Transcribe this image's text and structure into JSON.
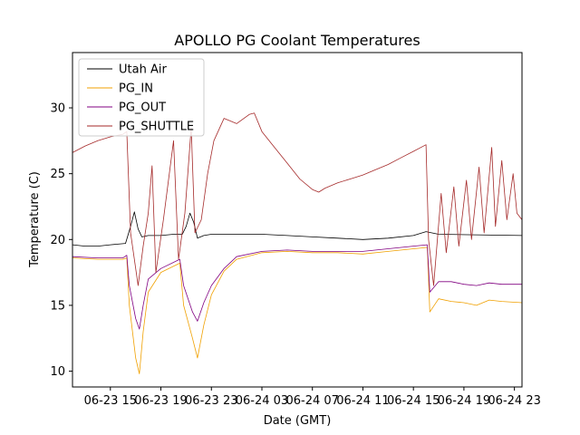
{
  "chart_data": {
    "type": "line",
    "title": "APOLLO PG Coolant Temperatures",
    "xlabel": "Date (GMT)",
    "ylabel": "Temperature (C)",
    "x_unit": "hours since 06-23 12:00 GMT",
    "xlim": [
      0,
      35.6
    ],
    "ylim": [
      8.8,
      34.2
    ],
    "yticks": [
      10,
      15,
      20,
      25,
      30
    ],
    "xticks": [
      {
        "value": 3,
        "label": "06-23 15"
      },
      {
        "value": 7,
        "label": "06-23 19"
      },
      {
        "value": 11,
        "label": "06-23 23"
      },
      {
        "value": 15,
        "label": "06-24 03"
      },
      {
        "value": 19,
        "label": "06-24 07"
      },
      {
        "value": 23,
        "label": "06-24 11"
      },
      {
        "value": 27,
        "label": "06-24 15"
      },
      {
        "value": 31,
        "label": "06-24 19"
      },
      {
        "value": 35,
        "label": "06-24 23"
      }
    ],
    "legend_position": "top-left",
    "series": [
      {
        "name": "Utah Air",
        "color": "#000000",
        "points": [
          [
            0,
            19.6
          ],
          [
            1,
            19.5
          ],
          [
            2,
            19.5
          ],
          [
            3,
            19.6
          ],
          [
            4.2,
            19.7
          ],
          [
            4.6,
            21.0
          ],
          [
            4.9,
            22.1
          ],
          [
            5.2,
            20.8
          ],
          [
            5.5,
            20.2
          ],
          [
            6,
            20.3
          ],
          [
            7,
            20.3
          ],
          [
            8,
            20.4
          ],
          [
            8.7,
            20.4
          ],
          [
            9,
            21.0
          ],
          [
            9.3,
            22.0
          ],
          [
            9.6,
            21.3
          ],
          [
            9.9,
            20.1
          ],
          [
            10.4,
            20.3
          ],
          [
            11,
            20.4
          ],
          [
            13,
            20.4
          ],
          [
            15,
            20.4
          ],
          [
            17,
            20.3
          ],
          [
            19,
            20.2
          ],
          [
            21,
            20.1
          ],
          [
            23,
            20.0
          ],
          [
            25,
            20.1
          ],
          [
            27,
            20.3
          ],
          [
            28,
            20.6
          ],
          [
            29,
            20.4
          ],
          [
            35.6,
            20.3
          ]
        ]
      },
      {
        "name": "PG_IN",
        "color": "#f0a000",
        "points": [
          [
            0,
            18.6
          ],
          [
            2,
            18.5
          ],
          [
            4,
            18.5
          ],
          [
            4.3,
            18.6
          ],
          [
            4.5,
            15.0
          ],
          [
            5.0,
            11.0
          ],
          [
            5.3,
            9.8
          ],
          [
            5.6,
            13.0
          ],
          [
            6,
            16.0
          ],
          [
            7,
            17.5
          ],
          [
            8.5,
            18.2
          ],
          [
            8.8,
            15.0
          ],
          [
            9.5,
            12.5
          ],
          [
            9.9,
            11.0
          ],
          [
            10.4,
            13.5
          ],
          [
            11,
            15.8
          ],
          [
            12,
            17.6
          ],
          [
            13,
            18.5
          ],
          [
            15,
            19.0
          ],
          [
            17,
            19.1
          ],
          [
            19,
            19.0
          ],
          [
            21,
            19.0
          ],
          [
            23,
            18.9
          ],
          [
            25,
            19.1
          ],
          [
            27,
            19.3
          ],
          [
            28.1,
            19.4
          ],
          [
            28.3,
            14.5
          ],
          [
            29,
            15.5
          ],
          [
            30,
            15.3
          ],
          [
            31,
            15.2
          ],
          [
            32,
            15.0
          ],
          [
            33,
            15.4
          ],
          [
            34,
            15.3
          ],
          [
            35.6,
            15.2
          ]
        ]
      },
      {
        "name": "PG_OUT",
        "color": "#800080",
        "points": [
          [
            0,
            18.7
          ],
          [
            2,
            18.6
          ],
          [
            4,
            18.6
          ],
          [
            4.3,
            18.8
          ],
          [
            4.5,
            16.5
          ],
          [
            5.0,
            14.0
          ],
          [
            5.3,
            13.2
          ],
          [
            5.6,
            15.0
          ],
          [
            6,
            17.0
          ],
          [
            7,
            17.8
          ],
          [
            8.5,
            18.5
          ],
          [
            8.8,
            16.5
          ],
          [
            9.5,
            14.5
          ],
          [
            9.9,
            13.8
          ],
          [
            10.4,
            15.2
          ],
          [
            11,
            16.5
          ],
          [
            12,
            17.8
          ],
          [
            13,
            18.7
          ],
          [
            15,
            19.1
          ],
          [
            17,
            19.2
          ],
          [
            19,
            19.1
          ],
          [
            21,
            19.1
          ],
          [
            23,
            19.1
          ],
          [
            25,
            19.3
          ],
          [
            27,
            19.5
          ],
          [
            28.1,
            19.6
          ],
          [
            28.3,
            16.0
          ],
          [
            29,
            16.8
          ],
          [
            30,
            16.8
          ],
          [
            31,
            16.6
          ],
          [
            32,
            16.5
          ],
          [
            33,
            16.7
          ],
          [
            34,
            16.6
          ],
          [
            35.6,
            16.6
          ]
        ]
      },
      {
        "name": "PG_SHUTTLE",
        "color": "#a52a2a",
        "points": [
          [
            0,
            26.6
          ],
          [
            1,
            27.1
          ],
          [
            2,
            27.5
          ],
          [
            3,
            27.8
          ],
          [
            4,
            28.0
          ],
          [
            4.3,
            28.2
          ],
          [
            4.6,
            20.5
          ],
          [
            5.2,
            16.5
          ],
          [
            5.6,
            19.5
          ],
          [
            6,
            22.0
          ],
          [
            6.3,
            25.6
          ],
          [
            6.6,
            17.5
          ],
          [
            7.2,
            21.5
          ],
          [
            7.6,
            24.5
          ],
          [
            8.0,
            27.5
          ],
          [
            8.4,
            18.5
          ],
          [
            8.9,
            22.0
          ],
          [
            9.4,
            28.5
          ],
          [
            9.7,
            20.5
          ],
          [
            10.2,
            21.5
          ],
          [
            10.7,
            25.0
          ],
          [
            11.2,
            27.5
          ],
          [
            12,
            29.2
          ],
          [
            13,
            28.8
          ],
          [
            14,
            29.5
          ],
          [
            14.4,
            29.6
          ],
          [
            15,
            28.2
          ],
          [
            16,
            27.0
          ],
          [
            17,
            25.8
          ],
          [
            18,
            24.6
          ],
          [
            19,
            23.8
          ],
          [
            19.5,
            23.6
          ],
          [
            20,
            23.9
          ],
          [
            21,
            24.3
          ],
          [
            22,
            24.6
          ],
          [
            23,
            24.9
          ],
          [
            24,
            25.3
          ],
          [
            25,
            25.7
          ],
          [
            26,
            26.2
          ],
          [
            27,
            26.7
          ],
          [
            28.0,
            27.2
          ],
          [
            28.2,
            20.0
          ],
          [
            28.6,
            16.5
          ],
          [
            29.2,
            23.5
          ],
          [
            29.6,
            19.0
          ],
          [
            30.2,
            24.0
          ],
          [
            30.6,
            19.5
          ],
          [
            31.2,
            24.5
          ],
          [
            31.6,
            20.0
          ],
          [
            32.2,
            25.5
          ],
          [
            32.6,
            20.5
          ],
          [
            33.2,
            27.0
          ],
          [
            33.5,
            21.0
          ],
          [
            34.0,
            26.0
          ],
          [
            34.4,
            21.5
          ],
          [
            34.9,
            25.0
          ],
          [
            35.2,
            22.0
          ],
          [
            35.6,
            21.5
          ]
        ]
      }
    ]
  }
}
